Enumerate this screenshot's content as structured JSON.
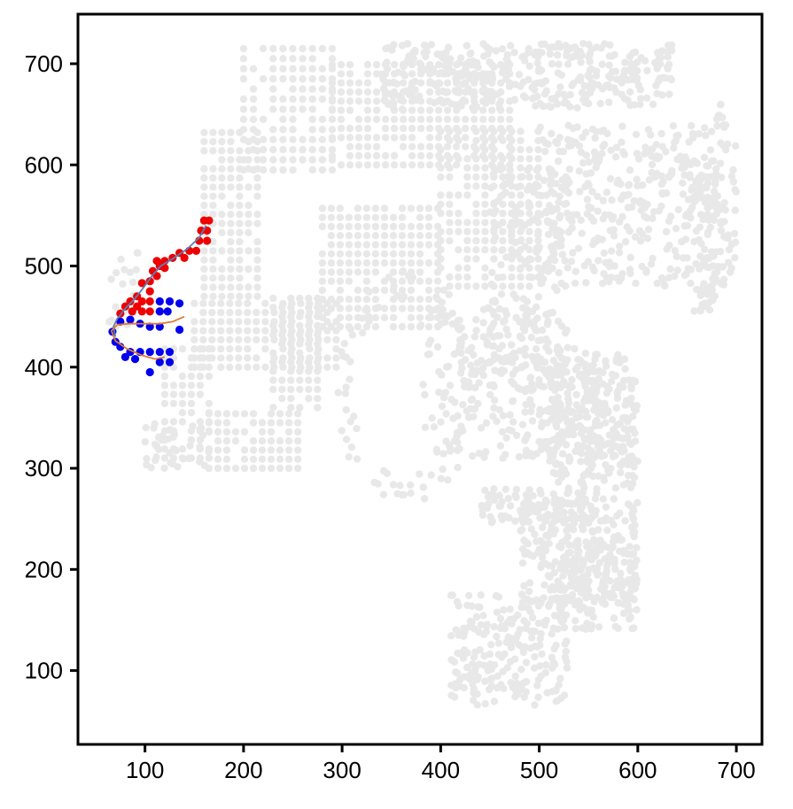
{
  "chart_data": {
    "type": "scatter",
    "title": "",
    "xlabel": "",
    "ylabel": "",
    "xlim": [
      32,
      726
    ],
    "ylim": [
      27,
      749
    ],
    "xticks": [
      100,
      200,
      300,
      400,
      500,
      600,
      700
    ],
    "xtick_labels": [
      "100",
      "200",
      "300",
      "400",
      "500",
      "600",
      "700"
    ],
    "yticks": [
      100,
      200,
      300,
      400,
      500,
      600,
      700
    ],
    "ytick_labels": [
      "100",
      "200",
      "300",
      "400",
      "500",
      "600",
      "700"
    ],
    "grid": false,
    "legend": "none",
    "colors": {
      "background_spots": "#e8e8e8",
      "highlight_red": "#ee0000",
      "highlight_blue": "#0000ee",
      "curve_blue": "#5b7fb5",
      "curve_orange": "#e07a35",
      "axis": "#000000"
    },
    "background_regions": [
      {
        "shape": "grid",
        "x": [
          200,
          290
        ],
        "y": [
          595,
          715
        ],
        "step": 10
      },
      {
        "shape": "grid",
        "x": [
          290,
          470
        ],
        "y": [
          600,
          700
        ],
        "step": 9
      },
      {
        "shape": "grid",
        "x": [
          160,
          220
        ],
        "y": [
          470,
          640
        ],
        "step": 9
      },
      {
        "shape": "grid",
        "x": [
          120,
          165
        ],
        "y": [
          310,
          420
        ],
        "step": 9
      },
      {
        "shape": "grid",
        "x": [
          165,
          260
        ],
        "y": [
          300,
          360
        ],
        "step": 9
      },
      {
        "shape": "grid",
        "x": [
          150,
          300
        ],
        "y": [
          400,
          470
        ],
        "step": 9
      },
      {
        "shape": "grid",
        "x": [
          280,
          400
        ],
        "y": [
          440,
          560
        ],
        "step": 9
      },
      {
        "shape": "grid",
        "x": [
          400,
          500
        ],
        "y": [
          480,
          640
        ],
        "step": 9
      },
      {
        "shape": "grid",
        "x": [
          230,
          280
        ],
        "y": [
          360,
          470
        ],
        "step": 9
      },
      {
        "shape": "ring",
        "cx": 365,
        "cy": 380,
        "rx": 70,
        "ry": 110,
        "n": 90
      },
      {
        "shape": "band",
        "x": [
          340,
          640
        ],
        "y": [
          655,
          720
        ],
        "n": 360
      },
      {
        "shape": "band",
        "x": [
          500,
          700
        ],
        "y": [
          480,
          640
        ],
        "n": 380
      },
      {
        "shape": "band",
        "x": [
          450,
          530
        ],
        "y": [
          380,
          600
        ],
        "n": 170
      },
      {
        "shape": "band",
        "x": [
          380,
          510
        ],
        "y": [
          310,
          460
        ],
        "n": 200
      },
      {
        "shape": "band",
        "x": [
          500,
          580
        ],
        "y": [
          310,
          420
        ],
        "n": 130
      },
      {
        "shape": "band",
        "x": [
          510,
          600
        ],
        "y": [
          280,
          410
        ],
        "n": 240
      },
      {
        "shape": "band",
        "x": [
          440,
          560
        ],
        "y": [
          245,
          280
        ],
        "n": 90
      },
      {
        "shape": "band",
        "x": [
          480,
          600
        ],
        "y": [
          165,
          270
        ],
        "n": 280
      },
      {
        "shape": "band",
        "x": [
          410,
          530
        ],
        "y": [
          65,
          175
        ],
        "n": 230
      },
      {
        "shape": "band",
        "x": [
          530,
          600
        ],
        "y": [
          140,
          230
        ],
        "n": 100
      },
      {
        "shape": "band",
        "x": [
          645,
          690
        ],
        "y": [
          540,
          605
        ],
        "n": 45
      },
      {
        "shape": "band",
        "x": [
          655,
          680
        ],
        "y": [
          455,
          510
        ],
        "n": 35
      },
      {
        "shape": "band",
        "x": [
          680,
          690
        ],
        "y": [
          630,
          660
        ],
        "n": 10
      },
      {
        "shape": "band",
        "x": [
          62,
          95
        ],
        "y": [
          440,
          520
        ],
        "n": 20
      },
      {
        "shape": "band",
        "x": [
          100,
          165
        ],
        "y": [
          300,
          345
        ],
        "n": 40
      }
    ],
    "red_points": [
      [
        160,
        545
      ],
      [
        165,
        545
      ],
      [
        157,
        535
      ],
      [
        163,
        535
      ],
      [
        155,
        525
      ],
      [
        163,
        525
      ],
      [
        145,
        515
      ],
      [
        152,
        515
      ],
      [
        135,
        513
      ],
      [
        140,
        508
      ],
      [
        128,
        508
      ],
      [
        120,
        505
      ],
      [
        112,
        505
      ],
      [
        115,
        500
      ],
      [
        108,
        495
      ],
      [
        120,
        498
      ],
      [
        112,
        490
      ],
      [
        105,
        485
      ],
      [
        97,
        483
      ],
      [
        105,
        475
      ],
      [
        92,
        470
      ],
      [
        97,
        465
      ],
      [
        85,
        465
      ],
      [
        80,
        460
      ],
      [
        92,
        460
      ],
      [
        105,
        465
      ],
      [
        87,
        455
      ],
      [
        97,
        455
      ],
      [
        105,
        455
      ],
      [
        115,
        455
      ],
      [
        75,
        453
      ]
    ],
    "blue_points": [
      [
        115,
        465
      ],
      [
        125,
        465
      ],
      [
        135,
        463
      ],
      [
        115,
        455
      ],
      [
        123,
        455
      ],
      [
        75,
        445
      ],
      [
        85,
        447
      ],
      [
        95,
        443
      ],
      [
        105,
        440
      ],
      [
        115,
        440
      ],
      [
        135,
        437
      ],
      [
        67,
        435
      ],
      [
        70,
        425
      ],
      [
        75,
        420
      ],
      [
        85,
        415
      ],
      [
        95,
        415
      ],
      [
        105,
        415
      ],
      [
        115,
        415
      ],
      [
        125,
        415
      ],
      [
        80,
        410
      ],
      [
        90,
        408
      ],
      [
        115,
        405
      ],
      [
        125,
        405
      ],
      [
        105,
        395
      ]
    ],
    "curves": [
      {
        "color": "blue",
        "points": [
          [
            162,
            540
          ],
          [
            155,
            528
          ],
          [
            143,
            517
          ],
          [
            128,
            507
          ],
          [
            116,
            500
          ],
          [
            107,
            490
          ],
          [
            98,
            478
          ],
          [
            90,
            468
          ],
          [
            80,
            458
          ],
          [
            72,
            448
          ],
          [
            68,
            440
          ],
          [
            70,
            430
          ]
        ]
      },
      {
        "color": "orange",
        "points": [
          [
            140,
            450
          ],
          [
            128,
            445
          ],
          [
            115,
            443
          ],
          [
            100,
            443
          ],
          [
            85,
            443
          ],
          [
            72,
            442
          ],
          [
            66,
            436
          ],
          [
            70,
            426
          ],
          [
            82,
            418
          ],
          [
            96,
            412
          ],
          [
            110,
            408
          ],
          [
            120,
            410
          ]
        ]
      }
    ]
  }
}
